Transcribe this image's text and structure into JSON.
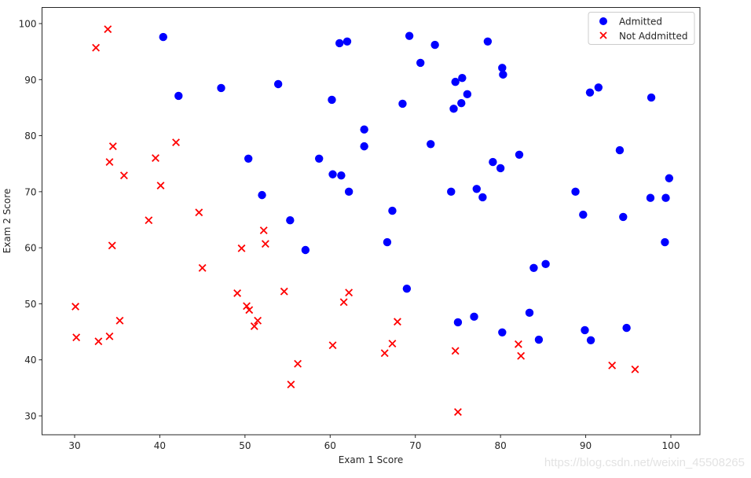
{
  "chart_data": {
    "type": "scatter",
    "title": "",
    "xlabel": "Exam 1 Score",
    "ylabel": "Exam 2 Score",
    "xlim": [
      26.3,
      103.4
    ],
    "ylim": [
      27.0,
      102.9
    ],
    "xticks": [
      30,
      40,
      50,
      60,
      70,
      80,
      90,
      100
    ],
    "yticks": [
      30,
      40,
      50,
      60,
      70,
      80,
      90,
      100
    ],
    "grid": false,
    "legend_position": "upper right",
    "series": [
      {
        "name": "Admitted",
        "marker": "circle",
        "color": "#0000ff",
        "points": [
          [
            40.4,
            97.6
          ],
          [
            42.2,
            87.1
          ],
          [
            47.2,
            88.5
          ],
          [
            53.9,
            89.2
          ],
          [
            50.4,
            75.9
          ],
          [
            52.0,
            69.4
          ],
          [
            55.3,
            64.9
          ],
          [
            57.1,
            59.6
          ],
          [
            58.7,
            75.9
          ],
          [
            60.2,
            86.4
          ],
          [
            61.1,
            96.5
          ],
          [
            62.0,
            96.8
          ],
          [
            60.3,
            73.1
          ],
          [
            61.3,
            72.9
          ],
          [
            62.2,
            70.0
          ],
          [
            64.0,
            81.1
          ],
          [
            64.0,
            78.1
          ],
          [
            67.3,
            66.6
          ],
          [
            66.7,
            61.0
          ],
          [
            69.0,
            52.7
          ],
          [
            69.3,
            97.8
          ],
          [
            70.6,
            93.0
          ],
          [
            72.3,
            96.2
          ],
          [
            71.8,
            78.5
          ],
          [
            68.5,
            85.7
          ],
          [
            74.2,
            70.0
          ],
          [
            74.5,
            84.8
          ],
          [
            74.7,
            89.6
          ],
          [
            75.5,
            90.3
          ],
          [
            75.4,
            85.8
          ],
          [
            76.1,
            87.4
          ],
          [
            75.0,
            46.7
          ],
          [
            76.9,
            47.7
          ],
          [
            77.2,
            70.5
          ],
          [
            77.9,
            69.0
          ],
          [
            78.5,
            96.8
          ],
          [
            79.1,
            75.3
          ],
          [
            80.0,
            74.2
          ],
          [
            80.2,
            92.1
          ],
          [
            80.3,
            90.9
          ],
          [
            80.2,
            44.9
          ],
          [
            82.2,
            76.6
          ],
          [
            83.9,
            56.4
          ],
          [
            83.4,
            48.4
          ],
          [
            85.3,
            57.1
          ],
          [
            84.5,
            43.6
          ],
          [
            88.8,
            70.0
          ],
          [
            89.7,
            65.9
          ],
          [
            89.9,
            45.3
          ],
          [
            90.6,
            43.5
          ],
          [
            90.5,
            87.7
          ],
          [
            91.5,
            88.6
          ],
          [
            94.0,
            77.4
          ],
          [
            94.4,
            65.5
          ],
          [
            94.8,
            45.7
          ],
          [
            97.6,
            68.9
          ],
          [
            97.7,
            86.8
          ],
          [
            99.4,
            68.9
          ],
          [
            99.3,
            61.0
          ],
          [
            99.8,
            72.4
          ]
        ]
      },
      {
        "name": "Not Addmitted",
        "marker": "x",
        "color": "#ff0000",
        "points": [
          [
            33.9,
            99.0
          ],
          [
            32.5,
            95.7
          ],
          [
            34.5,
            78.1
          ],
          [
            34.1,
            75.3
          ],
          [
            35.8,
            72.9
          ],
          [
            34.4,
            60.4
          ],
          [
            38.7,
            64.9
          ],
          [
            39.5,
            76.0
          ],
          [
            40.1,
            71.1
          ],
          [
            41.9,
            78.8
          ],
          [
            44.6,
            66.3
          ],
          [
            45.0,
            56.4
          ],
          [
            30.1,
            49.5
          ],
          [
            30.2,
            44.0
          ],
          [
            32.8,
            43.3
          ],
          [
            34.1,
            44.2
          ],
          [
            35.3,
            47.0
          ],
          [
            49.6,
            59.9
          ],
          [
            52.2,
            63.1
          ],
          [
            52.4,
            60.7
          ],
          [
            49.1,
            51.9
          ],
          [
            50.2,
            49.6
          ],
          [
            50.5,
            48.9
          ],
          [
            51.5,
            47.0
          ],
          [
            51.1,
            46.0
          ],
          [
            54.6,
            52.2
          ],
          [
            56.2,
            39.3
          ],
          [
            55.4,
            35.6
          ],
          [
            60.3,
            42.6
          ],
          [
            61.6,
            50.3
          ],
          [
            62.2,
            52.0
          ],
          [
            67.9,
            46.8
          ],
          [
            67.3,
            42.9
          ],
          [
            66.4,
            41.2
          ],
          [
            74.7,
            41.6
          ],
          [
            75.0,
            30.7
          ],
          [
            82.1,
            42.8
          ],
          [
            82.4,
            40.7
          ],
          [
            93.1,
            39.0
          ],
          [
            95.8,
            38.3
          ]
        ]
      }
    ]
  },
  "legend": {
    "items": [
      {
        "label": "Admitted",
        "icon": "blue-circle-marker"
      },
      {
        "label": "Not Addmitted",
        "icon": "red-x-marker"
      }
    ]
  },
  "watermark": "https://blog.csdn.net/weixin_45508265"
}
